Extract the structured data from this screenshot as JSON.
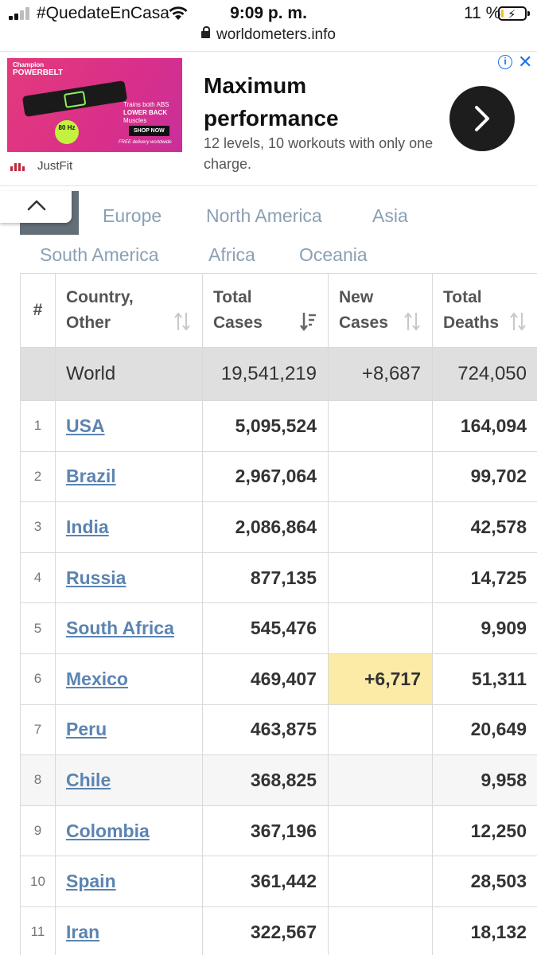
{
  "status_bar": {
    "carrier": "#QuedateEnCasa",
    "time": "9:09 p. m.",
    "battery": "11 %",
    "battery_level": 0.11,
    "url": "worldometers.info"
  },
  "ad": {
    "image": {
      "brand_line1": "Champion",
      "brand_line2": "POWERBELT",
      "hz": "80 Hz",
      "abs_line1": "Trains both ABS",
      "abs_line2": "LOWER BACK",
      "abs_line3": "Muscles",
      "shop": "SHOP NOW",
      "free": "FREE delivery worldwide"
    },
    "advertiser": "JustFit",
    "title": "Maximum performance",
    "description": "12 levels, 10 workouts with only one charge.",
    "info_icon": "i",
    "close_icon": "✕"
  },
  "regions": {
    "europe": "Europe",
    "north_america": "North America",
    "asia": "Asia",
    "south_america": "South America",
    "africa": "Africa",
    "oceania": "Oceania"
  },
  "table": {
    "headers": {
      "rank": "#",
      "country_line1": "Country,",
      "country_line2": "Other",
      "total_cases_line1": "Total",
      "total_cases_line2": "Cases",
      "new_cases_line1": "New",
      "new_cases_line2": "Cases",
      "total_deaths_line1": "Total",
      "total_deaths_line2": "Deaths"
    },
    "world": {
      "country": "World",
      "total_cases": "19,541,219",
      "new_cases": "+8,687",
      "total_deaths": "724,050"
    },
    "rows": [
      {
        "rank": "1",
        "country": "USA",
        "total_cases": "5,095,524",
        "new_cases": "",
        "total_deaths": "164,094"
      },
      {
        "rank": "2",
        "country": "Brazil",
        "total_cases": "2,967,064",
        "new_cases": "",
        "total_deaths": "99,702"
      },
      {
        "rank": "3",
        "country": "India",
        "total_cases": "2,086,864",
        "new_cases": "",
        "total_deaths": "42,578"
      },
      {
        "rank": "4",
        "country": "Russia",
        "total_cases": "877,135",
        "new_cases": "",
        "total_deaths": "14,725"
      },
      {
        "rank": "5",
        "country": "South Africa",
        "total_cases": "545,476",
        "new_cases": "",
        "total_deaths": "9,909"
      },
      {
        "rank": "6",
        "country": "Mexico",
        "total_cases": "469,407",
        "new_cases": "+6,717",
        "total_deaths": "51,311"
      },
      {
        "rank": "7",
        "country": "Peru",
        "total_cases": "463,875",
        "new_cases": "",
        "total_deaths": "20,649"
      },
      {
        "rank": "8",
        "country": "Chile",
        "total_cases": "368,825",
        "new_cases": "",
        "total_deaths": "9,958"
      },
      {
        "rank": "9",
        "country": "Colombia",
        "total_cases": "367,196",
        "new_cases": "",
        "total_deaths": "12,250"
      },
      {
        "rank": "10",
        "country": "Spain",
        "total_cases": "361,442",
        "new_cases": "",
        "total_deaths": "28,503"
      },
      {
        "rank": "11",
        "country": "Iran",
        "total_cases": "322,567",
        "new_cases": "",
        "total_deaths": "18,132"
      }
    ]
  },
  "colors": {
    "link": "#5b84b1",
    "world_row": "#dfdfdf",
    "new_cases_highlight": "#fbeba6",
    "region_tab": "#8aa0b4"
  }
}
